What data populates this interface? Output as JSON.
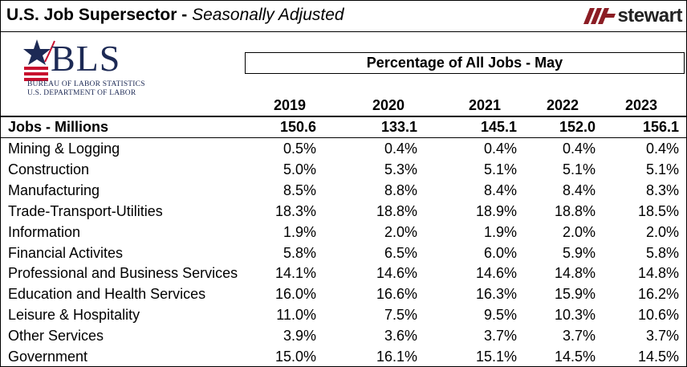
{
  "header": {
    "title_bold": "U.S. Job Supersector -",
    "title_italic": "Seasonally Adjusted",
    "brand": "stewart"
  },
  "bls_logo": {
    "name": "BLS",
    "line1": "BUREAU OF LABOR STATISTICS",
    "line2": "U.S. DEPARTMENT OF LABOR"
  },
  "table": {
    "caption": "Percentage of All Jobs - May",
    "years": [
      "2019",
      "2020",
      "2021",
      "2022",
      "2023"
    ],
    "jobs_row": {
      "label": "Jobs - Millions",
      "values": [
        "150.6",
        "133.1",
        "145.1",
        "152.0",
        "156.1"
      ]
    },
    "rows": [
      {
        "label": "Mining & Logging",
        "values": [
          "0.5%",
          "0.4%",
          "0.4%",
          "0.4%",
          "0.4%"
        ]
      },
      {
        "label": "Construction",
        "values": [
          "5.0%",
          "5.3%",
          "5.1%",
          "5.1%",
          "5.1%"
        ]
      },
      {
        "label": "Manufacturing",
        "values": [
          "8.5%",
          "8.8%",
          "8.4%",
          "8.4%",
          "8.3%"
        ]
      },
      {
        "label": "Trade-Transport-Utilities",
        "values": [
          "18.3%",
          "18.8%",
          "18.9%",
          "18.8%",
          "18.5%"
        ]
      },
      {
        "label": "Information",
        "values": [
          "1.9%",
          "2.0%",
          "1.9%",
          "2.0%",
          "2.0%"
        ]
      },
      {
        "label": "Financial Activites",
        "values": [
          "5.8%",
          "6.5%",
          "6.0%",
          "5.9%",
          "5.8%"
        ]
      },
      {
        "label": "Professional and Business Services",
        "values": [
          "14.1%",
          "14.6%",
          "14.6%",
          "14.8%",
          "14.8%"
        ]
      },
      {
        "label": "Education and Health Services",
        "values": [
          "16.0%",
          "16.6%",
          "16.3%",
          "15.9%",
          "16.2%"
        ]
      },
      {
        "label": "Leisure & Hospitality",
        "values": [
          "11.0%",
          "7.5%",
          "9.5%",
          "10.3%",
          "10.6%"
        ]
      },
      {
        "label": "Other Services",
        "values": [
          "3.9%",
          "3.6%",
          "3.7%",
          "3.7%",
          "3.7%"
        ]
      },
      {
        "label": "Government",
        "values": [
          "15.0%",
          "16.1%",
          "15.1%",
          "14.5%",
          "14.5%"
        ]
      }
    ]
  }
}
